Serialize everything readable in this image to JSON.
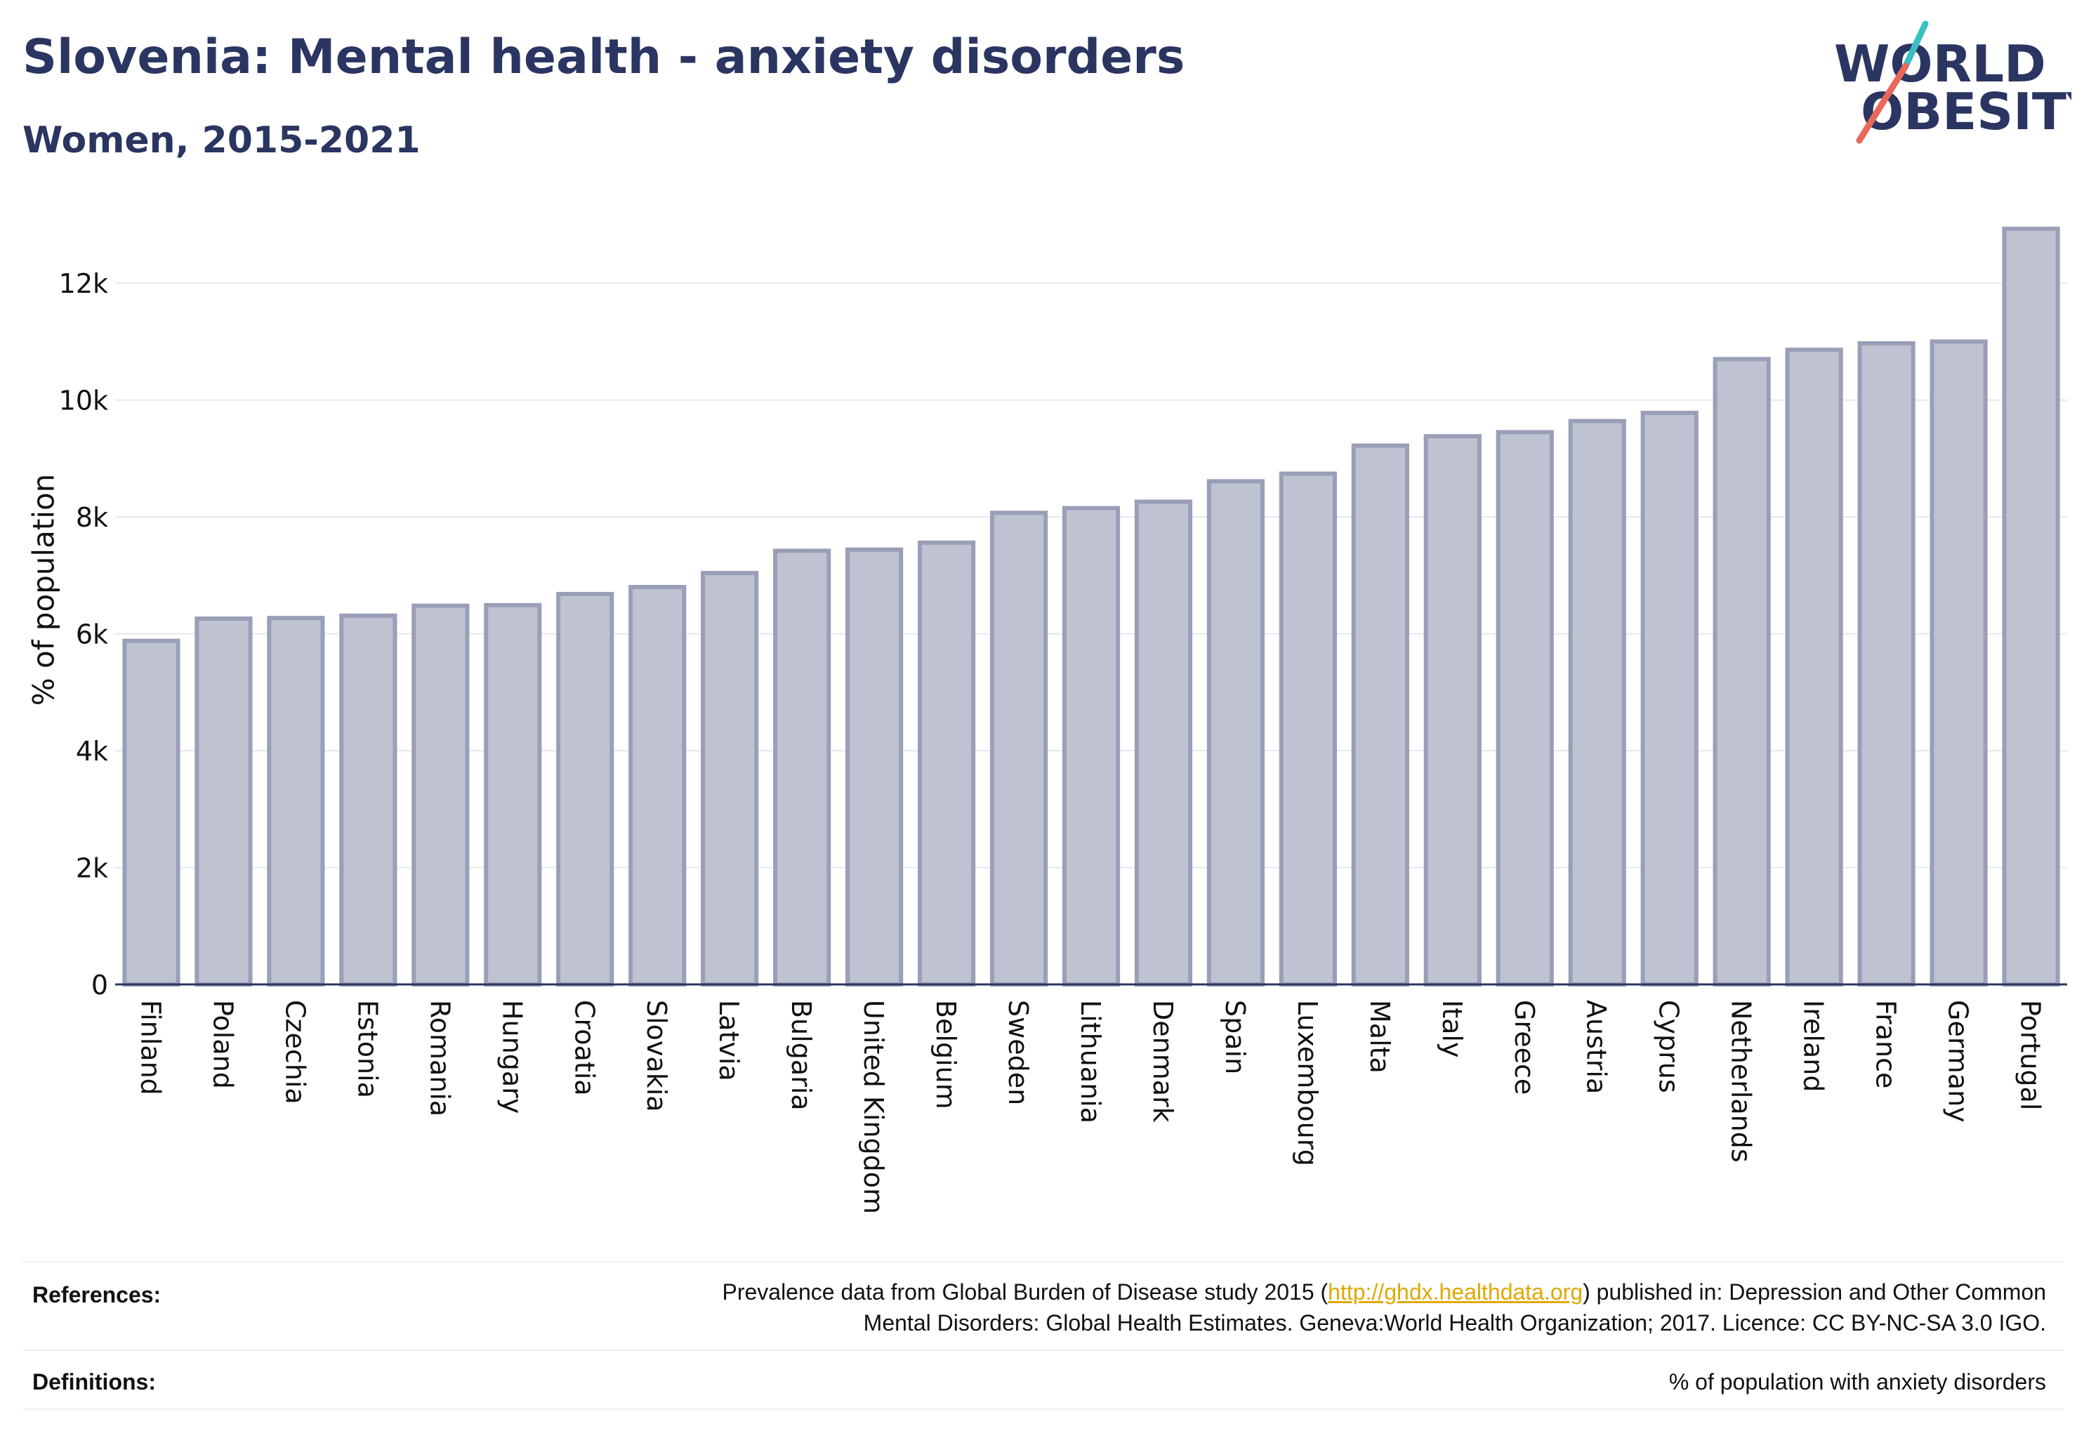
{
  "header": {
    "title": "Slovenia: Mental health - anxiety disorders",
    "subtitle": "Women, 2015-2021"
  },
  "logo": {
    "line1": "WORLD",
    "line2": "OBESITY"
  },
  "chart_data": {
    "type": "bar",
    "ylabel": "% of population",
    "xlabel": "",
    "ylim": [
      0,
      13000
    ],
    "yticks": [
      0,
      2000,
      4000,
      6000,
      8000,
      10000,
      12000
    ],
    "ytick_labels": [
      "0",
      "2k",
      "4k",
      "6k",
      "8k",
      "10k",
      "12k"
    ],
    "grid": true,
    "categories": [
      "Finland",
      "Poland",
      "Czechia",
      "Estonia",
      "Romania",
      "Hungary",
      "Croatia",
      "Slovakia",
      "Latvia",
      "Bulgaria",
      "United Kingdom",
      "Belgium",
      "Sweden",
      "Lithuania",
      "Denmark",
      "Spain",
      "Luxembourg",
      "Malta",
      "Italy",
      "Greece",
      "Austria",
      "Cyprus",
      "Netherlands",
      "Ireland",
      "France",
      "Germany",
      "Portugal"
    ],
    "values": [
      5880,
      6260,
      6270,
      6310,
      6480,
      6490,
      6680,
      6800,
      7040,
      7420,
      7440,
      7560,
      8070,
      8150,
      8260,
      8610,
      8740,
      9220,
      9380,
      9450,
      9640,
      9780,
      10700,
      10860,
      10970,
      11000,
      12930
    ],
    "colors": {
      "bar_fill": "#bfc2d0",
      "bar_stroke": "#9a9fb8",
      "axis": "#2b3561",
      "grid": "#e6e8ee"
    }
  },
  "footer": {
    "references_label": "References:",
    "references_pre": "Prevalence data from Global Burden of Disease study 2015 (",
    "references_link": "http://ghdx.healthdata.org",
    "references_post": ") published in: Depression and Other Common",
    "references_line2": "Mental Disorders: Global Health Estimates. Geneva:World Health Organization; 2017. Licence: CC BY-NC-SA 3.0 IGO.",
    "definitions_label": "Definitions:",
    "definitions_text": "% of population with anxiety disorders"
  },
  "colors": {
    "title": "#2b3561",
    "logo_slash_red": "#e8685a",
    "logo_slash_teal": "#3bbfc1",
    "link": "#e0a800"
  }
}
